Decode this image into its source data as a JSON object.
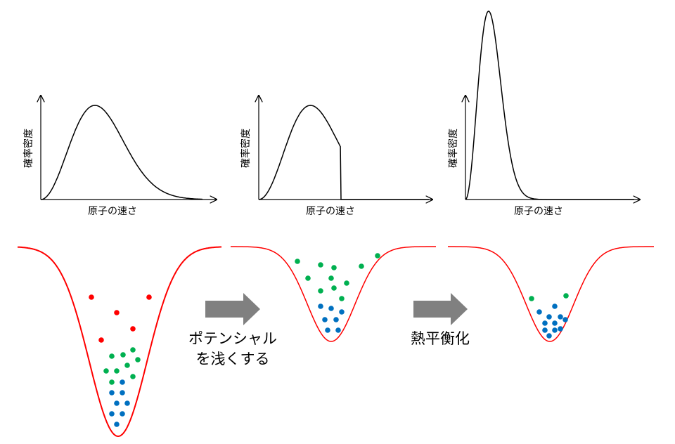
{
  "charts": [
    {
      "xlabel": "原子の速さ",
      "ylabel": "確率密度"
    },
    {
      "xlabel": "原子の速さ",
      "ylabel": "確率密度"
    },
    {
      "xlabel": "原子の速さ",
      "ylabel": "確率密度"
    }
  ],
  "steps": [
    {
      "line1": "ポテンシャル",
      "line2": "を浅くする"
    },
    {
      "line1": "熱平衡化",
      "line2": ""
    }
  ],
  "colors": {
    "potential": "#ff0000",
    "atom_hot": "#ff0000",
    "atom_warm": "#00b050",
    "atom_cold": "#0070c0",
    "arrow": "#808080",
    "axis": "#000000"
  }
}
